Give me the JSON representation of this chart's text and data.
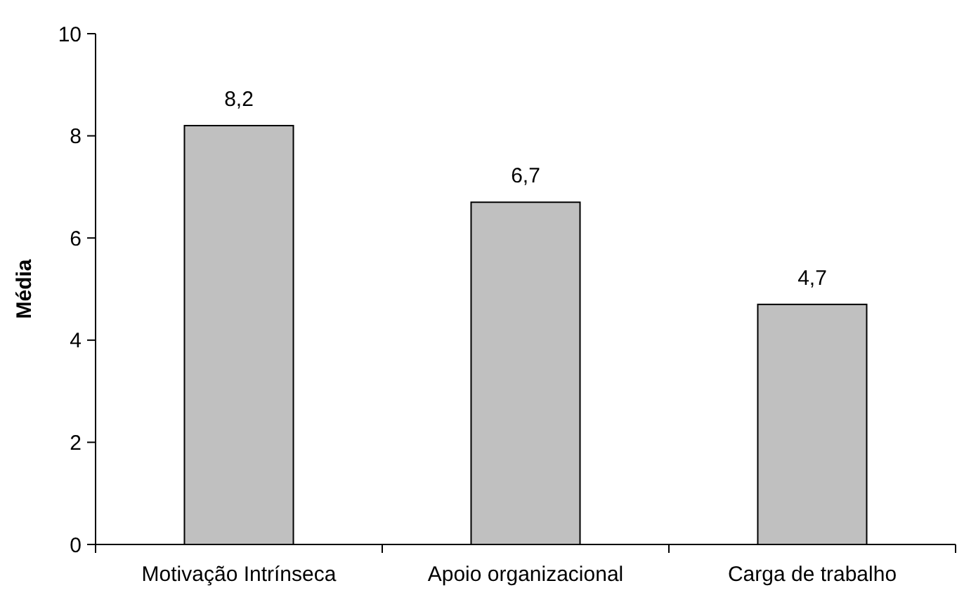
{
  "chart_data": {
    "type": "bar",
    "ylabel": "Média",
    "categories": [
      "Motivação Intrínseca",
      "Apoio organizacional",
      "Carga de trabalho"
    ],
    "values": [
      8.2,
      6.7,
      4.7
    ],
    "value_labels": [
      "8,2",
      "6,7",
      "4,7"
    ],
    "color": "#c0c0c0",
    "ylim": [
      0,
      10
    ],
    "yticks": [
      0,
      2,
      4,
      6,
      8,
      10
    ],
    "grid": false
  }
}
